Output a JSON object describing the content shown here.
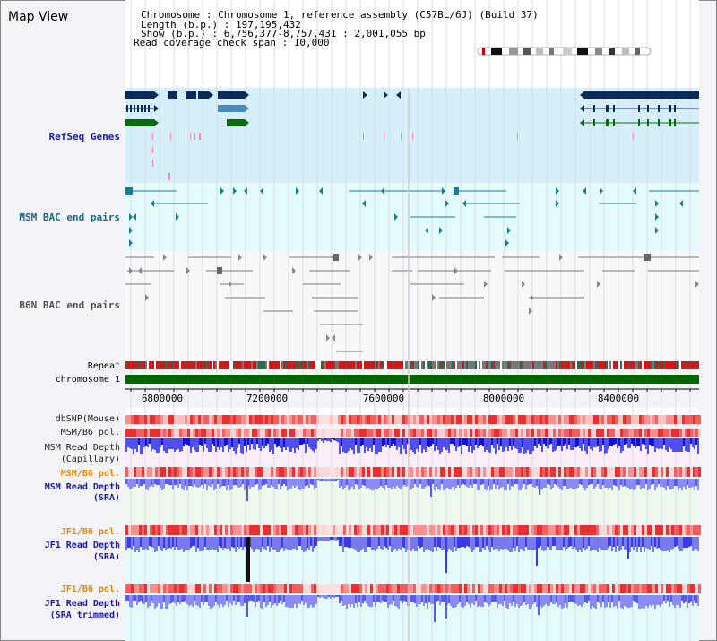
{
  "header": {
    "title": "Map View",
    "lines": [
      "Chromosome      : Chromosome 1, reference assembly (C57BL/6J) (Build 37)",
      "Length (b.p.)  : 197,195,432",
      "Show (b.p.)  : 6,756,377-8,757,431 : 2,001,055 bp",
      "Read coverage check span : 10,000"
    ]
  },
  "tracks": {
    "refseq": "RefSeq Genes",
    "msm_bac": "MSM BAC end pairs",
    "b6n_bac": "B6N BAC end pairs",
    "repeat": "Repeat",
    "chromosome": "chromosome 1",
    "dbsnp": "dbSNP(Mouse)",
    "msm_b6_pol_1": "MSM/B6 pol.",
    "msm_depth_cap_1": "MSM Read Depth",
    "msm_depth_cap_2": "(Capillary)",
    "msm_b6_pol_2": "MSM/B6 pol.",
    "msm_depth_sra_1": "MSM Read Depth",
    "msm_depth_sra_2": "(SRA)",
    "jf1_b6_pol_1": "JF1/B6 pol.",
    "jf1_depth_sra_1": "JF1 Read Depth",
    "jf1_depth_sra_2": "(SRA)",
    "jf1_b6_pol_2": "JF1/B6 pol.",
    "jf1_depth_trim_1": "JF1 Read Depth",
    "jf1_depth_trim_2": "(SRA trimmed)"
  },
  "axis": {
    "ticks": [
      "6800000",
      "7200000",
      "7600000",
      "8000000",
      "8400000"
    ]
  },
  "colors": {
    "refseq_label": "#1a1aa0",
    "msm_bac_label": "#1a6a8a",
    "b6n_bac_label": "#444444",
    "pol_label_orange": "#e08a00",
    "depth_label_blue": "#1a1aa0"
  }
}
